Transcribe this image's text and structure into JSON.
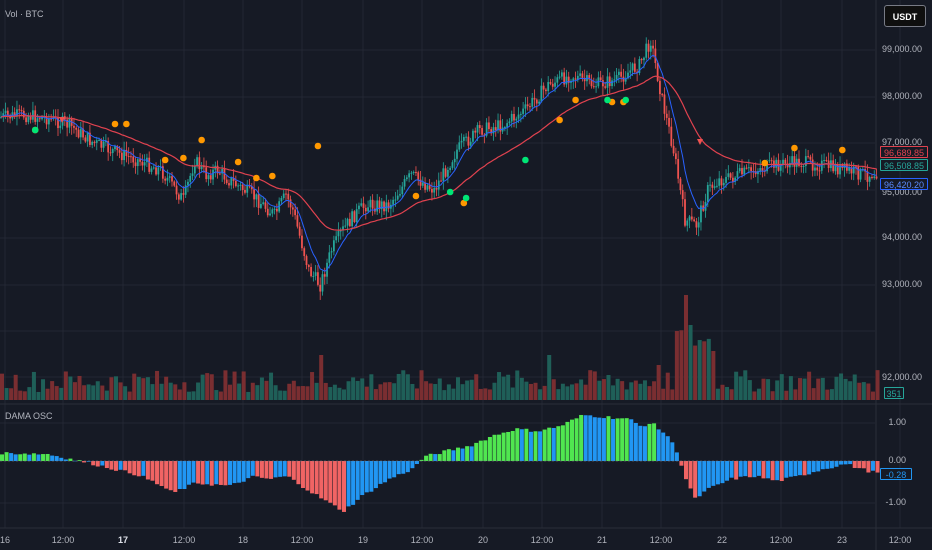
{
  "top_title": "Vol · BTC",
  "osc_title": "DAMA OSC",
  "currency_button": "USDT",
  "price_axis": [
    "99,000.00",
    "98,000.00",
    "97,000.00",
    "95,000.00",
    "94,000.00",
    "93,000.00",
    "92,000.00"
  ],
  "osc_axis": [
    "1.00",
    "0.00",
    "-1.00"
  ],
  "time_axis": [
    {
      "label": "16",
      "bold": false
    },
    {
      "label": "12:00",
      "bold": false
    },
    {
      "label": "17",
      "bold": true
    },
    {
      "label": "12:00",
      "bold": false
    },
    {
      "label": "18",
      "bold": false
    },
    {
      "label": "12:00",
      "bold": false
    },
    {
      "label": "19",
      "bold": false
    },
    {
      "label": "12:00",
      "bold": false
    },
    {
      "label": "20",
      "bold": false
    },
    {
      "label": "12:00",
      "bold": false
    },
    {
      "label": "21",
      "bold": false
    },
    {
      "label": "12:00",
      "bold": false
    },
    {
      "label": "22",
      "bold": false
    },
    {
      "label": "12:00",
      "bold": false
    },
    {
      "label": "23",
      "bold": false
    },
    {
      "label": "12:00",
      "bold": false
    }
  ],
  "price_labels": {
    "slow_ma": "96,689.85",
    "last_price": "96,508.85",
    "fast_ma": "96,420.20",
    "volume": "351",
    "osc": "-0.28"
  },
  "colors": {
    "background": "#161a25",
    "up": "#26a69a",
    "down": "#ef5350",
    "slow_ma": "#e0424f",
    "fast_ma": "#2962ff",
    "osc_up": "#50e650",
    "osc_neutral": "#2196f3",
    "osc_down": "#f06464",
    "dot_orange": "#ff9800",
    "dot_green": "#00e676"
  }
}
